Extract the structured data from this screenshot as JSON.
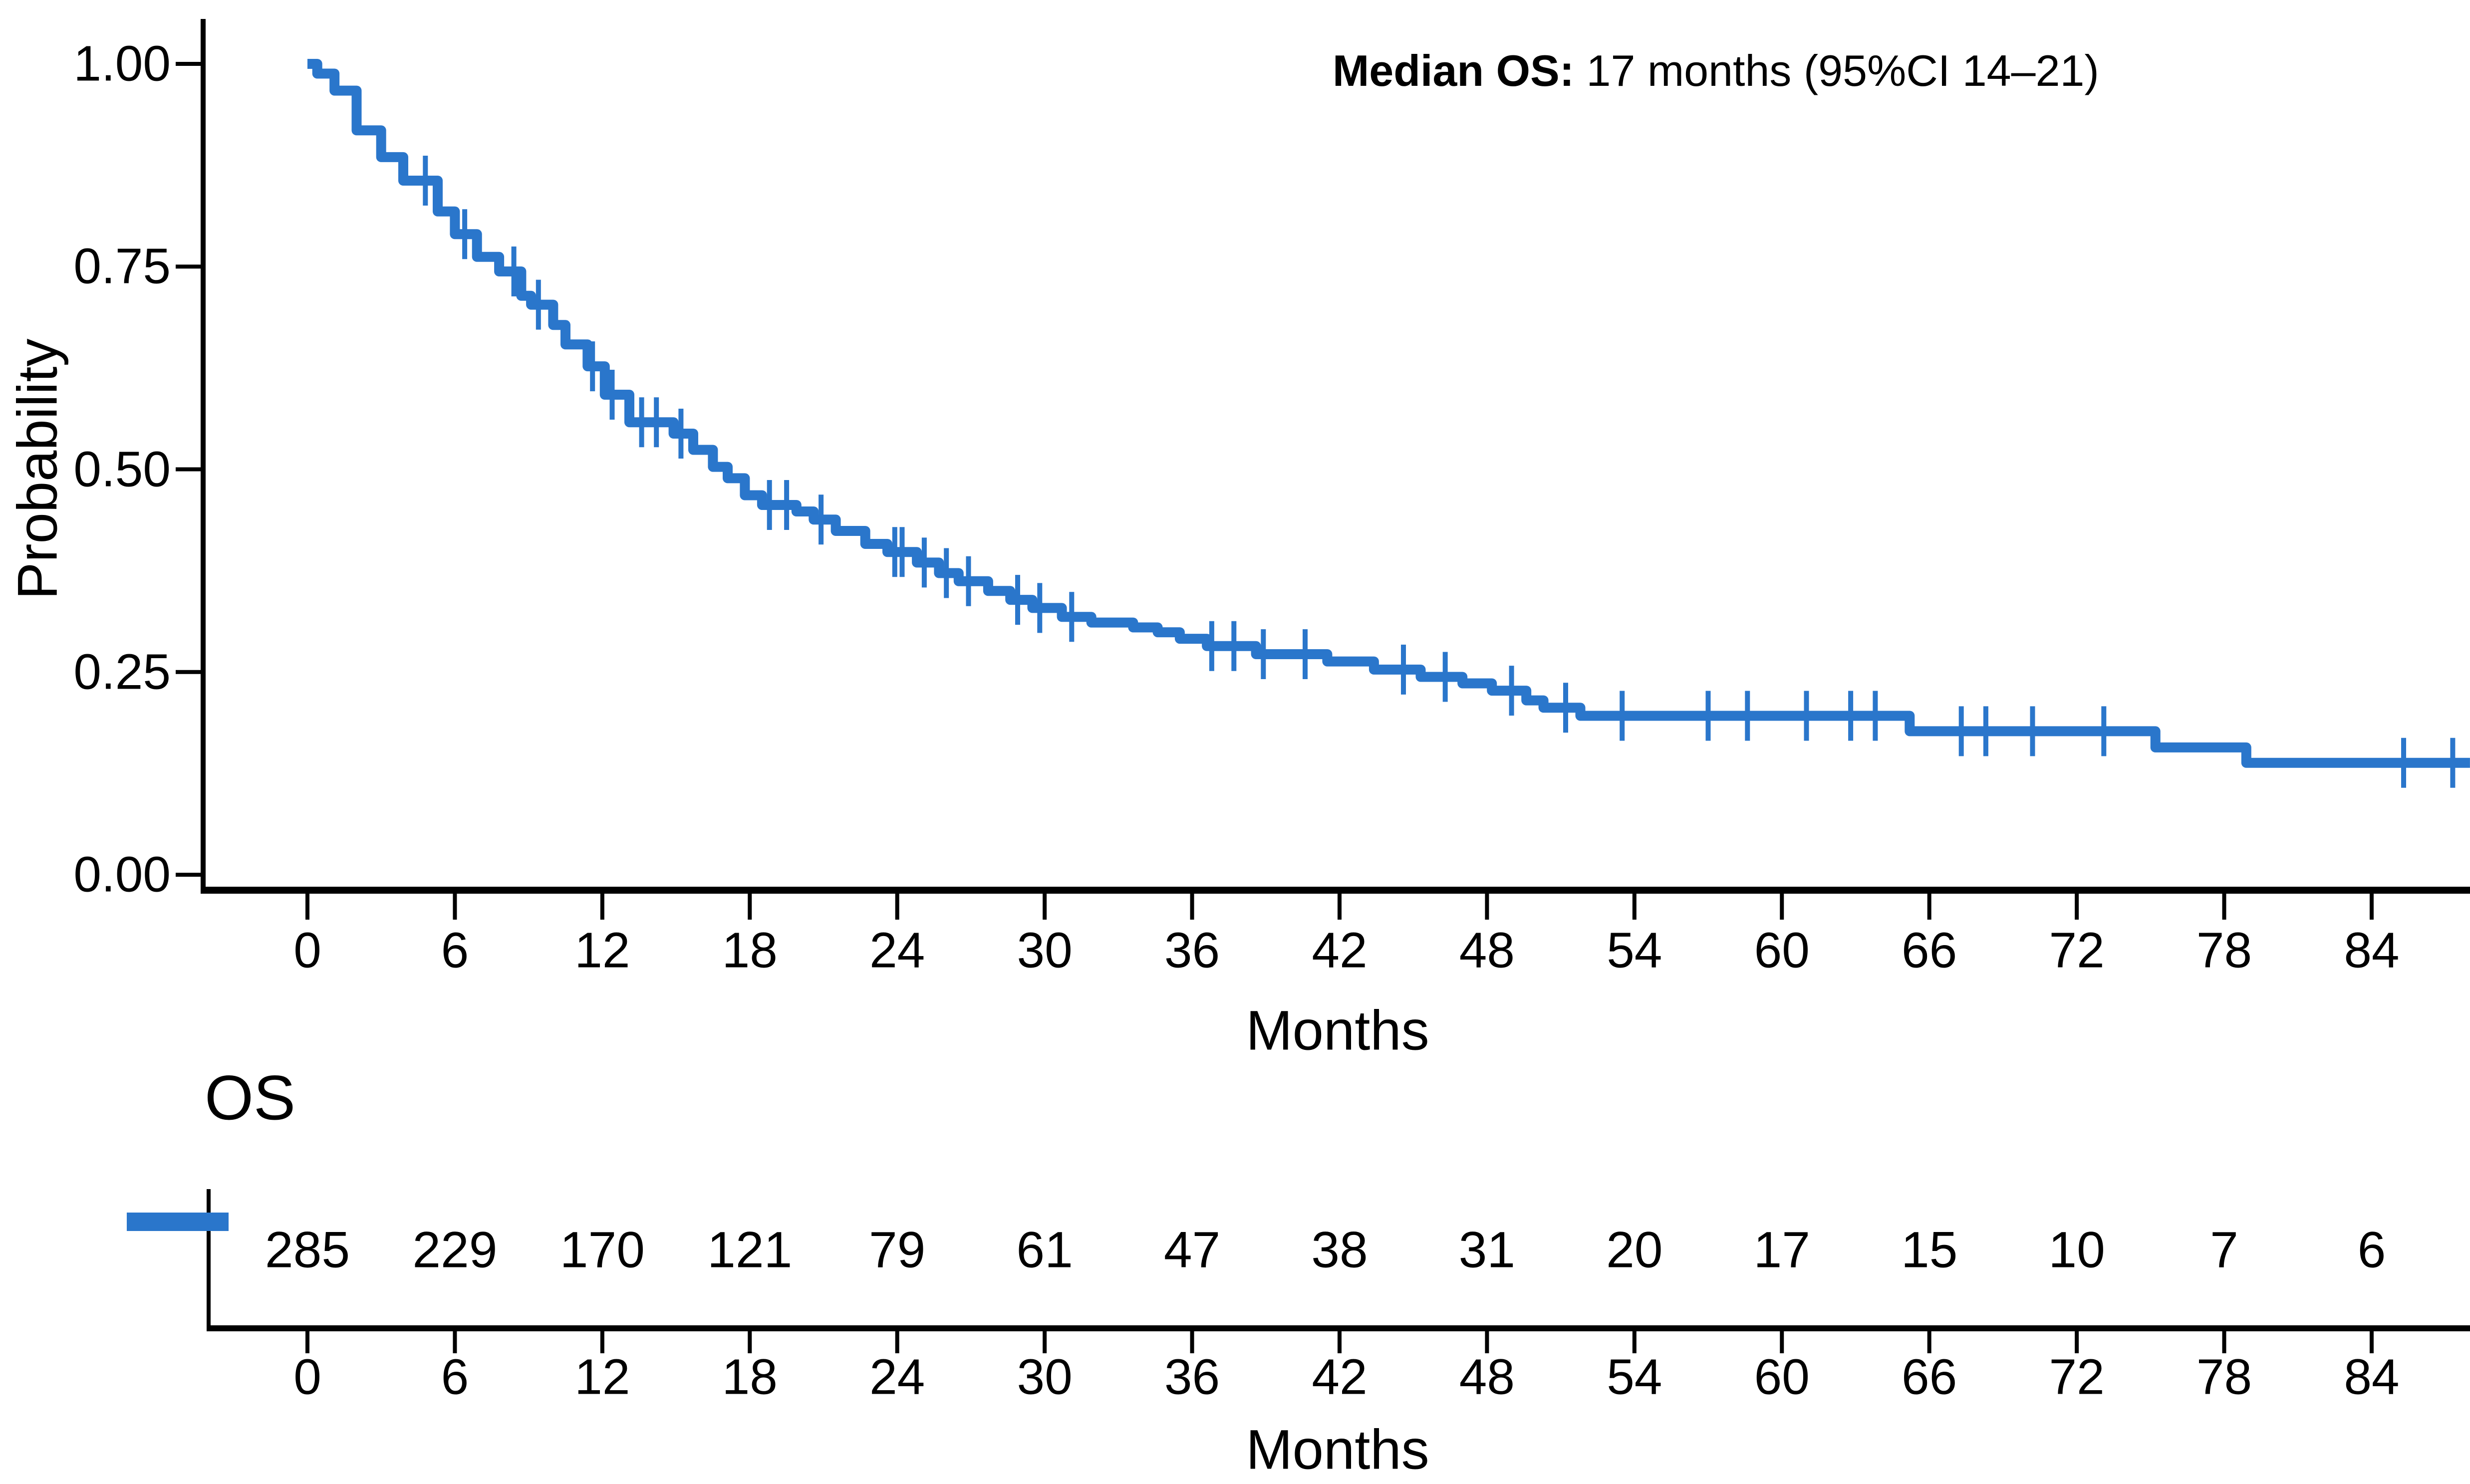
{
  "colors": {
    "curve": "#2A76CB",
    "axis": "#000000",
    "text": "#000000"
  },
  "annotation": {
    "bold": "Median OS:",
    "rest": " 17 months (95%CI 14–21)"
  },
  "main_chart": {
    "ylabel": "Probability",
    "xlabel": "Months"
  },
  "risk_table": {
    "title": "OS",
    "xlabel": "Months"
  },
  "chart_data": {
    "type": "line",
    "subtype": "kaplan-meier-step-curve",
    "xlabel": "Months",
    "ylabel": "Probability",
    "xlim": [
      0,
      88
    ],
    "ylim": [
      0,
      1
    ],
    "grid": false,
    "legend_position": "none",
    "annotation_text": "Median OS: 17 months (95%CI 14–21)",
    "median_os_months": "17",
    "ci95": "14–21",
    "x_ticks": [
      {
        "value": 0,
        "label": "0"
      },
      {
        "value": 6,
        "label": "6"
      },
      {
        "value": 12,
        "label": "12"
      },
      {
        "value": 18,
        "label": "18"
      },
      {
        "value": 24,
        "label": "24"
      },
      {
        "value": 30,
        "label": "30"
      },
      {
        "value": 36,
        "label": "36"
      },
      {
        "value": 42,
        "label": "42"
      },
      {
        "value": 48,
        "label": "48"
      },
      {
        "value": 54,
        "label": "54"
      },
      {
        "value": 60,
        "label": "60"
      },
      {
        "value": 66,
        "label": "66"
      },
      {
        "value": 72,
        "label": "72"
      },
      {
        "value": 78,
        "label": "78"
      },
      {
        "value": 84,
        "label": "84"
      }
    ],
    "y_ticks": [
      {
        "value": 1.0,
        "label": "1.00"
      },
      {
        "value": 0.75,
        "label": "0.75"
      },
      {
        "value": 0.5,
        "label": "0.50"
      },
      {
        "value": 0.25,
        "label": "0.25"
      },
      {
        "value": 0.0,
        "label": "0.00"
      }
    ],
    "series": [
      {
        "name": "OS",
        "end_time": 88,
        "steps": [
          [
            0,
            1.0
          ],
          [
            0.4,
            0.988
          ],
          [
            1.1,
            0.967
          ],
          [
            2.0,
            0.918
          ],
          [
            3.0,
            0.885
          ],
          [
            3.9,
            0.856
          ],
          [
            5.3,
            0.818
          ],
          [
            6.0,
            0.79
          ],
          [
            6.9,
            0.762
          ],
          [
            7.8,
            0.744
          ],
          [
            8.7,
            0.714
          ],
          [
            9.1,
            0.703
          ],
          [
            10.0,
            0.678
          ],
          [
            10.5,
            0.654
          ],
          [
            11.4,
            0.627
          ],
          [
            12.1,
            0.592
          ],
          [
            13.1,
            0.558
          ],
          [
            14.9,
            0.544
          ],
          [
            15.7,
            0.524
          ],
          [
            16.5,
            0.503
          ],
          [
            17.1,
            0.489
          ],
          [
            17.8,
            0.468
          ],
          [
            18.5,
            0.456
          ],
          [
            19.9,
            0.448
          ],
          [
            20.6,
            0.438
          ],
          [
            21.5,
            0.424
          ],
          [
            22.7,
            0.408
          ],
          [
            23.6,
            0.398
          ],
          [
            24.8,
            0.385
          ],
          [
            25.7,
            0.372
          ],
          [
            26.5,
            0.362
          ],
          [
            27.7,
            0.35
          ],
          [
            28.6,
            0.339
          ],
          [
            29.5,
            0.329
          ],
          [
            30.7,
            0.318
          ],
          [
            31.9,
            0.311
          ],
          [
            33.6,
            0.305
          ],
          [
            34.6,
            0.299
          ],
          [
            35.5,
            0.291
          ],
          [
            36.6,
            0.282
          ],
          [
            38.6,
            0.272
          ],
          [
            41.5,
            0.263
          ],
          [
            43.4,
            0.253
          ],
          [
            45.3,
            0.244
          ],
          [
            47.0,
            0.236
          ],
          [
            48.2,
            0.227
          ],
          [
            49.6,
            0.215
          ],
          [
            50.3,
            0.206
          ],
          [
            51.8,
            0.196
          ],
          [
            65.2,
            0.177
          ],
          [
            75.2,
            0.157
          ],
          [
            78.9,
            0.138
          ]
        ],
        "censors": [
          [
            4.8,
            0.856
          ],
          [
            6.4,
            0.79
          ],
          [
            8.4,
            0.744
          ],
          [
            9.4,
            0.703
          ],
          [
            11.6,
            0.627
          ],
          [
            12.4,
            0.592
          ],
          [
            13.6,
            0.558
          ],
          [
            14.2,
            0.558
          ],
          [
            15.2,
            0.544
          ],
          [
            18.8,
            0.456
          ],
          [
            19.5,
            0.456
          ],
          [
            20.9,
            0.438
          ],
          [
            23.9,
            0.398
          ],
          [
            24.2,
            0.398
          ],
          [
            25.1,
            0.385
          ],
          [
            26.0,
            0.372
          ],
          [
            26.9,
            0.362
          ],
          [
            28.9,
            0.339
          ],
          [
            29.8,
            0.329
          ],
          [
            31.1,
            0.318
          ],
          [
            36.8,
            0.282
          ],
          [
            37.7,
            0.282
          ],
          [
            38.9,
            0.272
          ],
          [
            40.6,
            0.272
          ],
          [
            44.6,
            0.253
          ],
          [
            46.3,
            0.244
          ],
          [
            49.0,
            0.227
          ],
          [
            51.2,
            0.206
          ],
          [
            53.5,
            0.196
          ],
          [
            57.0,
            0.196
          ],
          [
            58.6,
            0.196
          ],
          [
            61.0,
            0.196
          ],
          [
            62.8,
            0.196
          ],
          [
            63.8,
            0.196
          ],
          [
            67.3,
            0.177
          ],
          [
            68.3,
            0.177
          ],
          [
            70.2,
            0.177
          ],
          [
            73.1,
            0.177
          ],
          [
            85.3,
            0.138
          ],
          [
            87.3,
            0.138
          ]
        ]
      }
    ],
    "at_risk": {
      "strata_label": "OS",
      "times": [
        0,
        6,
        12,
        18,
        24,
        30,
        36,
        42,
        48,
        54,
        60,
        66,
        72,
        78,
        84
      ],
      "counts": [
        "285",
        "229",
        "170",
        "121",
        "79",
        "61",
        "47",
        "38",
        "31",
        "20",
        "17",
        "15",
        "10",
        "7",
        "6"
      ]
    }
  }
}
